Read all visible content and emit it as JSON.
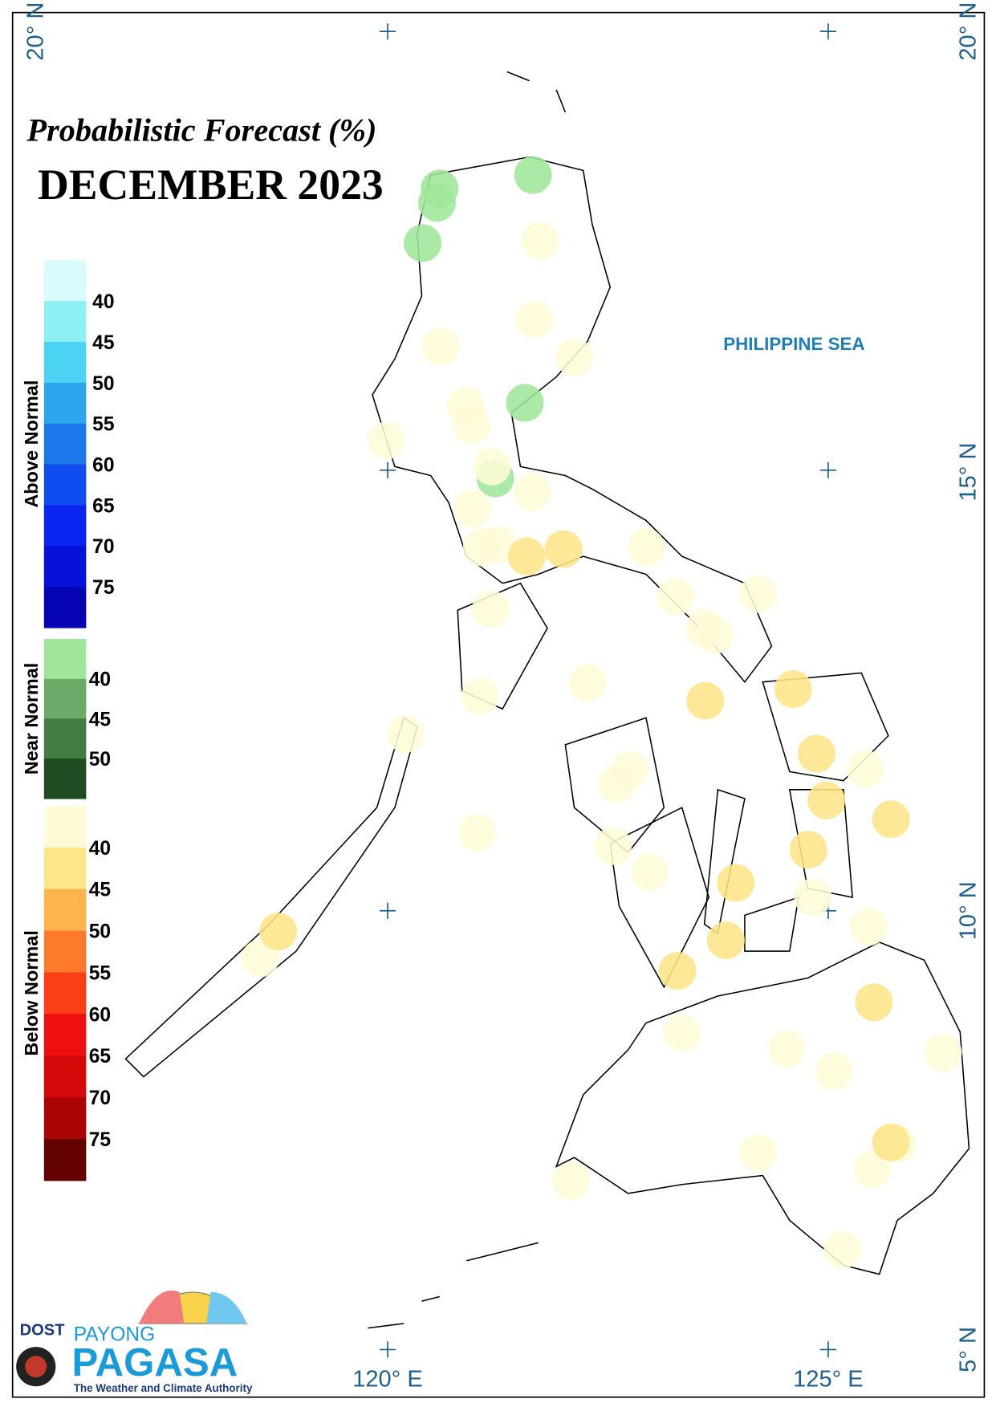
{
  "title": "Probabilistic Forecast (%)",
  "period": "DECEMBER 2023",
  "sea_label": "PHILIPPINE SEA",
  "lat_labels": [
    "20° N",
    "15° N",
    "10° N",
    "5° N"
  ],
  "lon_labels": [
    "120° E",
    "125° E"
  ],
  "legend": [
    {
      "name": "Above Normal",
      "colors": [
        "#d9fbfd",
        "#8cf0f5",
        "#4fd3f4",
        "#2ea6ee",
        "#1c78ea",
        "#0f4df0",
        "#0a25f2",
        "#0612d8",
        "#0505b4"
      ],
      "ticks": [
        "40",
        "45",
        "50",
        "55",
        "60",
        "65",
        "70",
        "75"
      ]
    },
    {
      "name": "Near Normal",
      "colors": [
        "#9fe69b",
        "#6aac67",
        "#437c43",
        "#214c22"
      ],
      "ticks": [
        "40",
        "45",
        "50"
      ]
    },
    {
      "name": "Below Normal",
      "colors": [
        "#fffbd8",
        "#fde58a",
        "#fdb44c",
        "#fd7a2c",
        "#fb3e16",
        "#ee1010",
        "#d40808",
        "#aa0404",
        "#640202"
      ],
      "ticks": [
        "40",
        "45",
        "50",
        "55",
        "60",
        "65",
        "70",
        "75"
      ]
    }
  ],
  "logo": {
    "agency": "DOST",
    "brand_top": "PAYONG",
    "brand": "PAGASA",
    "tagline": "The Weather and Climate Authority"
  }
}
